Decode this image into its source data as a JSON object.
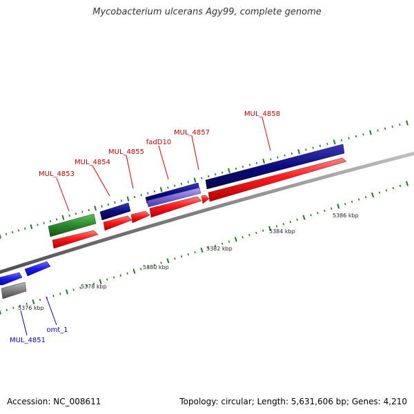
{
  "title": "Mycobacterium ulcerans Agy99, complete genome",
  "footer": {
    "accession": "Accession: NC_008611",
    "summary": "Topology: circular; Length: 5,631,606 bp; Genes: 4,210"
  },
  "colors": {
    "backbone": "#8a8a8a",
    "tick_marks": "#1e7a1e",
    "forward_label": "#cc0000",
    "reverse_label": "#0000cc",
    "cds_red": "#ff1a1a",
    "navy": "#0a0a80",
    "green": "#2a8a2a",
    "blue": "#1a1aee",
    "purple": "#7a6ad8",
    "gray": "#808080"
  },
  "scale_labels": [
    "5376 kbp",
    "5378 kbp",
    "5380 kbp",
    "5382 kbp",
    "5384 kbp",
    "5386 kbp"
  ],
  "gene_labels": {
    "forward": [
      "MUL_4853",
      "MUL_4854",
      "MUL_4855",
      "fadD10",
      "MUL_4857",
      "MUL_4858"
    ],
    "reverse": [
      "MUL_4851",
      "omt_1"
    ]
  }
}
